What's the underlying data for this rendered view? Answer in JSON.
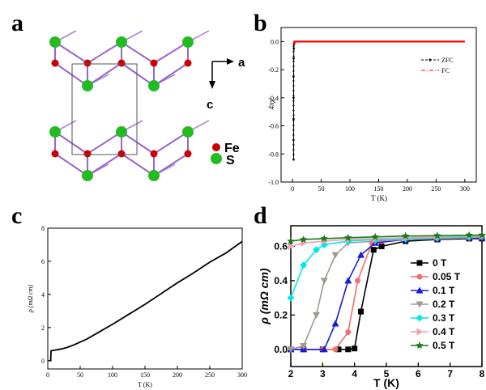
{
  "panels": {
    "a": {
      "label": "a"
    },
    "b": {
      "label": "b"
    },
    "c": {
      "label": "c"
    },
    "d": {
      "label": "d"
    }
  },
  "crystal": {
    "axis_a": "a",
    "axis_c": "c",
    "legend": [
      {
        "label": "Fe",
        "color": "#cc0000"
      },
      {
        "label": "S",
        "color": "#22bb22"
      }
    ],
    "bond_color": "#9966cc"
  },
  "chart_data": [
    {
      "type": "line",
      "panel": "b",
      "xlabel": "T (K)",
      "ylabel": "4πχ",
      "xlim": [
        -20,
        320
      ],
      "ylim": [
        -1.0,
        0.1
      ],
      "xticks": [
        0,
        50,
        100,
        150,
        200,
        250,
        300
      ],
      "yticks": [
        -1.0,
        -0.8,
        -0.6,
        -0.4,
        -0.2,
        0.0
      ],
      "ytick_labels": [
        "-1.0",
        "-0.8",
        "-0.6",
        "-0.4",
        "-0.2",
        "0.0"
      ],
      "legend_position": "top-right",
      "series": [
        {
          "name": "ZFC",
          "color": "#000000",
          "x": [
            1.8,
            1.8,
            1.8,
            1.8,
            1.8,
            2.0,
            2.2,
            2.5,
            3.0,
            4.0,
            5.0,
            10,
            50,
            100,
            150,
            200,
            250,
            300
          ],
          "y": [
            -0.84,
            -0.7,
            -0.55,
            -0.4,
            -0.25,
            -0.12,
            -0.05,
            -0.02,
            -0.01,
            0.0,
            0.0,
            0.0,
            0.0,
            0.0,
            0.0,
            0.0,
            0.0,
            0.0
          ]
        },
        {
          "name": "FC",
          "color": "#ff0000",
          "x": [
            1.8,
            3,
            5,
            10,
            50,
            100,
            150,
            200,
            250,
            300
          ],
          "y": [
            -0.02,
            0.0,
            0.0,
            0.0,
            0.0,
            0.0,
            0.0,
            0.0,
            0.0,
            0.0
          ]
        }
      ]
    },
    {
      "type": "line",
      "panel": "c",
      "xlabel": "T (K)",
      "ylabel": "ρ (mΩ cm)",
      "xlim": [
        0,
        300
      ],
      "ylim": [
        -0.5,
        8
      ],
      "xticks": [
        0,
        50,
        100,
        150,
        200,
        250,
        300
      ],
      "yticks": [
        0,
        2,
        4,
        6,
        8
      ],
      "series": [
        {
          "color": "#000000",
          "x": [
            2,
            4.5,
            5,
            10,
            20,
            30,
            40,
            60,
            80,
            100,
            125,
            150,
            175,
            200,
            225,
            250,
            275,
            300
          ],
          "y": [
            0,
            0,
            0.6,
            0.63,
            0.7,
            0.8,
            0.95,
            1.3,
            1.75,
            2.2,
            2.8,
            3.4,
            4.05,
            4.7,
            5.3,
            5.95,
            6.5,
            7.2
          ]
        }
      ]
    },
    {
      "type": "line",
      "panel": "d",
      "xlabel": "T (K)",
      "ylabel": "ρ (mΩ cm)",
      "xlim": [
        2,
        8
      ],
      "ylim": [
        -0.1,
        0.72
      ],
      "xticks": [
        2,
        3,
        4,
        5,
        6,
        7,
        8
      ],
      "yticks": [
        0.0,
        0.2,
        0.4,
        0.6
      ],
      "ytick_labels": [
        "0.0",
        "0.2",
        "0.4",
        "0.6"
      ],
      "legend_position": "center-right",
      "series": [
        {
          "name": "0 T",
          "color": "#000000",
          "marker": "square",
          "x": [
            2,
            2.4,
            3,
            3.5,
            3.8,
            4.0,
            4.2,
            4.6,
            4.85,
            5.6,
            6.6,
            7.6,
            8
          ],
          "y": [
            0,
            0,
            0,
            0,
            0,
            0.005,
            0.22,
            0.58,
            0.6,
            0.63,
            0.64,
            0.645,
            0.645
          ]
        },
        {
          "name": "0.05 T",
          "color": "#f07070",
          "marker": "circle",
          "x": [
            2,
            2.4,
            3,
            3.4,
            3.8,
            4.1,
            4.55,
            4.85,
            5.6,
            6.6,
            7.6,
            8
          ],
          "y": [
            0,
            0,
            0,
            0,
            0.1,
            0.4,
            0.62,
            0.63,
            0.64,
            0.645,
            0.65,
            0.65
          ]
        },
        {
          "name": "0.1 T",
          "color": "#1a1adb",
          "marker": "triangle-up",
          "x": [
            2,
            2.4,
            3.05,
            3.4,
            3.8,
            4.2,
            4.65,
            5.6,
            6.6,
            7.6,
            8
          ],
          "y": [
            0,
            0,
            0,
            0.15,
            0.4,
            0.55,
            0.62,
            0.64,
            0.645,
            0.65,
            0.65
          ]
        },
        {
          "name": "0.2 T",
          "color": "#a09a90",
          "marker": "triangle-down",
          "x": [
            2,
            2.4,
            2.8,
            3.05,
            3.4,
            3.8,
            4.65,
            5.6,
            6.6,
            7.6,
            8
          ],
          "y": [
            0,
            0.02,
            0.2,
            0.4,
            0.55,
            0.62,
            0.63,
            0.64,
            0.645,
            0.65,
            0.655
          ]
        },
        {
          "name": "0.3 T",
          "color": "#00e5ee",
          "marker": "diamond",
          "x": [
            2,
            2.4,
            2.8,
            3.05,
            3.8,
            4.65,
            5.6,
            6.6,
            7.6,
            8
          ],
          "y": [
            0.3,
            0.49,
            0.58,
            0.61,
            0.63,
            0.64,
            0.645,
            0.65,
            0.655,
            0.66
          ]
        },
        {
          "name": "0.4 T",
          "color": "#f2a2b2",
          "marker": "triangle-right",
          "x": [
            2,
            2.4,
            3.05,
            3.8,
            4.65,
            5.6,
            6.6,
            7.6,
            8
          ],
          "y": [
            0.6,
            0.62,
            0.63,
            0.64,
            0.645,
            0.65,
            0.655,
            0.66,
            0.66
          ]
        },
        {
          "name": "0.5 T",
          "color": "#1a7a1a",
          "marker": "star",
          "x": [
            2,
            2.4,
            3.05,
            3.8,
            4.65,
            5.6,
            6.6,
            7.6,
            8
          ],
          "y": [
            0.63,
            0.64,
            0.645,
            0.65,
            0.655,
            0.66,
            0.662,
            0.665,
            0.665
          ]
        }
      ]
    }
  ]
}
